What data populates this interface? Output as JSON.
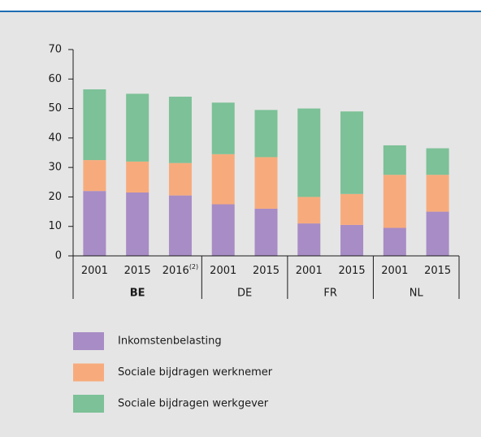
{
  "chart_data": {
    "type": "stacked_bar",
    "categories": [
      "2001",
      "2015",
      "2016",
      "2001",
      "2015",
      "2001",
      "2015",
      "2001",
      "2015"
    ],
    "category_superscripts": [
      null,
      null,
      "(2)",
      null,
      null,
      null,
      null,
      null,
      null
    ],
    "groups": [
      {
        "name": "BE",
        "span": 3,
        "bold": true
      },
      {
        "name": "DE",
        "span": 2,
        "bold": false
      },
      {
        "name": "FR",
        "span": 2,
        "bold": false
      },
      {
        "name": "NL",
        "span": 2,
        "bold": false
      }
    ],
    "series": [
      {
        "name": "Inkomstenbelasting",
        "color": "#a88cc5",
        "values": [
          22,
          21.5,
          20.5,
          17.5,
          16,
          11,
          10.5,
          9.5,
          15
        ]
      },
      {
        "name": "Sociale bijdragen werknemer",
        "color": "#f7ab7c",
        "values": [
          10.5,
          10.5,
          11,
          17,
          17.5,
          9,
          10.5,
          18,
          12.5
        ]
      },
      {
        "name": "Sociale bijdragen werkgever",
        "color": "#7cc197",
        "values": [
          24,
          23,
          22.5,
          17.5,
          16,
          30,
          28,
          10,
          9
        ]
      }
    ],
    "ylim": [
      0,
      70
    ],
    "yticks": [
      0,
      10,
      20,
      30,
      40,
      50,
      60,
      70
    ],
    "grid": false
  }
}
